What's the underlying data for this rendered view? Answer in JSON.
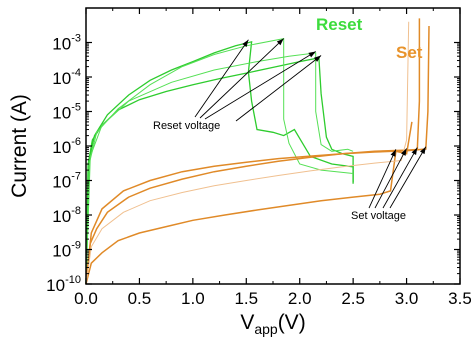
{
  "chart_data": {
    "type": "line",
    "xlabel_main": "V",
    "xlabel_sub": "app",
    "xlabel_unit": "(V)",
    "ylabel": "Current (A)",
    "xlim": [
      0,
      3.5
    ],
    "ylim": [
      1e-10,
      0.01
    ],
    "y_scale": "log",
    "x_ticks": [
      "0.0",
      "0.5",
      "1.0",
      "1.5",
      "2.0",
      "2.5",
      "3.0",
      "3.5"
    ],
    "y_tick_base": "10",
    "y_tick_exponents": [
      "-10",
      "-9",
      "-8",
      "-7",
      "-6",
      "-5",
      "-4",
      "-3"
    ],
    "series_labels": [
      {
        "text": "Reset",
        "color": "#3ddc3d"
      },
      {
        "text": "Set",
        "color": "#e8932b"
      }
    ],
    "annotations": [
      {
        "text": "Reset voltage",
        "targets_x": [
          1.52,
          1.85,
          2.15,
          2.2
        ]
      },
      {
        "text": "Set voltage",
        "targets_x": [
          2.9,
          3.0,
          3.1,
          3.18
        ]
      }
    ],
    "series": [
      {
        "color": "#2ecc2e",
        "width": 1.3,
        "points": [
          [
            0.0,
            1e-10
          ],
          [
            0.02,
            3e-07
          ],
          [
            0.06,
            1.5e-06
          ],
          [
            0.15,
            4e-06
          ],
          [
            0.3,
            1.1e-05
          ],
          [
            0.5,
            2.2e-05
          ],
          [
            0.75,
            3.8e-05
          ],
          [
            1.0,
            6e-05
          ],
          [
            1.25,
            9e-05
          ],
          [
            1.5,
            0.00013
          ],
          [
            1.75,
            0.00019
          ],
          [
            2.0,
            0.00028
          ],
          [
            2.18,
            0.00036
          ],
          [
            2.2,
            3.3e-05
          ],
          [
            2.25,
            1.8e-06
          ],
          [
            2.3,
            8e-07
          ],
          [
            2.4,
            6e-07
          ],
          [
            2.5,
            5e-07
          ],
          [
            2.5,
            8e-08
          ]
        ]
      },
      {
        "color": "#2ecc2e",
        "width": 1.3,
        "points": [
          [
            0.0,
            1e-10
          ],
          [
            0.03,
            4e-07
          ],
          [
            0.08,
            2e-06
          ],
          [
            0.2,
            8e-06
          ],
          [
            0.4,
            3e-05
          ],
          [
            0.6,
            8e-05
          ],
          [
            0.8,
            0.00016
          ],
          [
            1.0,
            0.00028
          ],
          [
            1.2,
            0.0005
          ],
          [
            1.4,
            0.0008
          ],
          [
            1.55,
            0.00105
          ],
          [
            1.52,
            0.00014
          ],
          [
            1.55,
            2e-05
          ],
          [
            1.6,
            3e-06
          ],
          [
            1.75,
            2.5e-06
          ],
          [
            1.85,
            2e-06
          ],
          [
            1.95,
            3e-06
          ],
          [
            2.1,
            5e-07
          ],
          [
            2.3,
            3e-07
          ],
          [
            2.5,
            2.5e-07
          ],
          [
            2.5,
            9e-08
          ]
        ]
      },
      {
        "color": "#55e055",
        "width": 1.0,
        "points": [
          [
            0.0,
            1e-10
          ],
          [
            0.03,
            3e-07
          ],
          [
            0.1,
            2.5e-06
          ],
          [
            0.3,
            1.2e-05
          ],
          [
            0.6,
            6e-05
          ],
          [
            0.9,
            0.0002
          ],
          [
            1.2,
            0.00045
          ],
          [
            1.5,
            0.0008
          ],
          [
            1.85,
            0.0013
          ],
          [
            1.85,
            6e-06
          ],
          [
            1.9,
            1.2e-06
          ],
          [
            2.0,
            3e-07
          ],
          [
            2.2,
            2e-07
          ],
          [
            2.5,
            1.6e-07
          ]
        ]
      },
      {
        "color": "#55e055",
        "width": 1.0,
        "points": [
          [
            0.0,
            1e-10
          ],
          [
            0.04,
            5e-07
          ],
          [
            0.15,
            4e-06
          ],
          [
            0.4,
            2e-05
          ],
          [
            0.8,
            7e-05
          ],
          [
            1.2,
            0.00016
          ],
          [
            1.6,
            0.00028
          ],
          [
            1.9,
            0.0004
          ],
          [
            2.15,
            0.0005
          ],
          [
            2.15,
            1e-05
          ],
          [
            2.2,
            1.1e-06
          ],
          [
            2.3,
            7e-07
          ],
          [
            2.45,
            8e-07
          ],
          [
            2.5,
            7e-07
          ]
        ]
      },
      {
        "color": "#e08a28",
        "width": 1.5,
        "points": [
          [
            0.0,
            1e-10
          ],
          [
            0.05,
            4e-10
          ],
          [
            0.15,
            8e-10
          ],
          [
            0.3,
            1.8e-09
          ],
          [
            0.5,
            3e-09
          ],
          [
            0.8,
            5e-09
          ],
          [
            1.0,
            7e-09
          ],
          [
            1.3,
            1e-08
          ],
          [
            1.6,
            1.4e-08
          ],
          [
            1.9,
            1.9e-08
          ],
          [
            2.2,
            2.6e-08
          ],
          [
            2.5,
            3.3e-08
          ],
          [
            2.75,
            4e-08
          ],
          [
            2.85,
            5e-08
          ],
          [
            2.9,
            7e-07
          ],
          [
            3.0,
            6e-07
          ],
          [
            3.05,
            5e-06
          ]
        ]
      },
      {
        "color": "#e08a28",
        "width": 1.5,
        "points": [
          [
            0.0,
            1e-10
          ],
          [
            0.04,
            1.5e-09
          ],
          [
            0.1,
            4e-09
          ],
          [
            0.2,
            1.2e-08
          ],
          [
            0.4,
            3.3e-08
          ],
          [
            0.6,
            6e-08
          ],
          [
            0.9,
            1.1e-07
          ],
          [
            1.2,
            1.8e-07
          ],
          [
            1.5,
            2.6e-07
          ],
          [
            1.8,
            3.6e-07
          ],
          [
            2.1,
            4.7e-07
          ],
          [
            2.4,
            6e-07
          ],
          [
            2.7,
            7e-07
          ],
          [
            3.0,
            7.6e-07
          ],
          [
            3.1,
            7.9e-07
          ],
          [
            3.12,
            2e-05
          ],
          [
            3.12,
            0.005
          ]
        ]
      },
      {
        "color": "#e08a28",
        "width": 1.5,
        "points": [
          [
            0.0,
            1e-10
          ],
          [
            0.05,
            3e-09
          ],
          [
            0.15,
            1.5e-08
          ],
          [
            0.35,
            5e-08
          ],
          [
            0.6,
            1e-07
          ],
          [
            0.9,
            1.8e-07
          ],
          [
            1.2,
            2.6e-07
          ],
          [
            1.5,
            3.4e-07
          ],
          [
            1.8,
            4.3e-07
          ],
          [
            2.1,
            5.1e-07
          ],
          [
            2.4,
            6e-07
          ],
          [
            2.7,
            6.7e-07
          ],
          [
            3.0,
            7.3e-07
          ],
          [
            3.18,
            8.2e-07
          ],
          [
            3.2,
            1e-05
          ],
          [
            3.21,
            0.003
          ]
        ]
      },
      {
        "color": "#f0c090",
        "width": 1.0,
        "points": [
          [
            0.0,
            1e-10
          ],
          [
            0.05,
            1.2e-09
          ],
          [
            0.15,
            4e-09
          ],
          [
            0.35,
            1.2e-08
          ],
          [
            0.6,
            2.6e-08
          ],
          [
            0.9,
            4.5e-08
          ],
          [
            1.2,
            7e-08
          ],
          [
            1.5,
            1e-07
          ],
          [
            1.8,
            1.4e-07
          ],
          [
            2.1,
            1.9e-07
          ],
          [
            2.4,
            2.5e-07
          ],
          [
            2.7,
            3.2e-07
          ],
          [
            2.95,
            3.8e-07
          ],
          [
            3.0,
            1.5e-06
          ],
          [
            3.02,
            0.004
          ]
        ]
      }
    ]
  }
}
